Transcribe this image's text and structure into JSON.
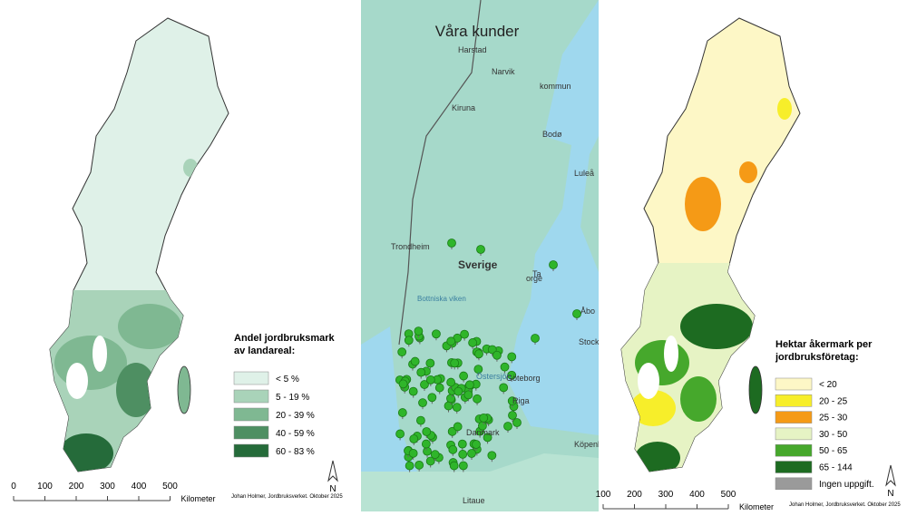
{
  "left_map": {
    "legend": {
      "title_lines": [
        "Andel jordbruksmark",
        "av landareal:"
      ],
      "items": [
        {
          "label": "< 5 %",
          "color": "#dff1e8"
        },
        {
          "label": "5 - 19 %",
          "color": "#a9d3b9"
        },
        {
          "label": "20 - 39 %",
          "color": "#7fb892"
        },
        {
          "label": "40 - 59 %",
          "color": "#4e8f62"
        },
        {
          "label": "60 - 83 %",
          "color": "#256b3a"
        }
      ]
    },
    "scale": {
      "ticks": [
        0,
        100,
        200,
        300,
        400,
        500
      ],
      "unit": "Kilometer"
    },
    "north": "N",
    "credit": "Johan Holmer, Jordbruksverket. Oktober 2025"
  },
  "middle_map": {
    "title": "Våra kunder",
    "places": [
      {
        "label": "Harstad"
      },
      {
        "label": "Narvik"
      },
      {
        "label": "kommun"
      },
      {
        "label": "Kiruna"
      },
      {
        "label": "Bodø"
      },
      {
        "label": "Luleå"
      },
      {
        "label": "Trondheim"
      },
      {
        "label": "Sverige"
      },
      {
        "label": "orge"
      },
      {
        "label": "Bottniska viken"
      },
      {
        "label": "Ta"
      },
      {
        "label": "Åbo"
      },
      {
        "label": "Stockholm"
      },
      {
        "label": "Östersjön"
      },
      {
        "label": "Göteborg"
      },
      {
        "label": "Riga"
      },
      {
        "label": "Danmark"
      },
      {
        "label": "Köpenhamn"
      },
      {
        "label": "Litaue"
      }
    ]
  },
  "right_map": {
    "legend": {
      "title_lines": [
        "Hektar åkermark per",
        "jordbruksföretag:"
      ],
      "items": [
        {
          "label": "< 20",
          "color": "#fdf7c6"
        },
        {
          "label": "20 - 25",
          "color": "#f7ee2a"
        },
        {
          "label": "25 - 30",
          "color": "#f59a16"
        },
        {
          "label": "30 - 50",
          "color": "#e6f3c4"
        },
        {
          "label": "50 - 65",
          "color": "#46a82c"
        },
        {
          "label": "65 - 144",
          "color": "#1d6b21"
        },
        {
          "label": "Ingen uppgift.",
          "color": "#9a9a9a"
        }
      ]
    },
    "scale": {
      "ticks": [
        100,
        200,
        300,
        400,
        500
      ],
      "unit": "Kilometer"
    },
    "north": "N",
    "credit": "Johan Holmer, Jordbruksverket. Oktober 2025"
  }
}
